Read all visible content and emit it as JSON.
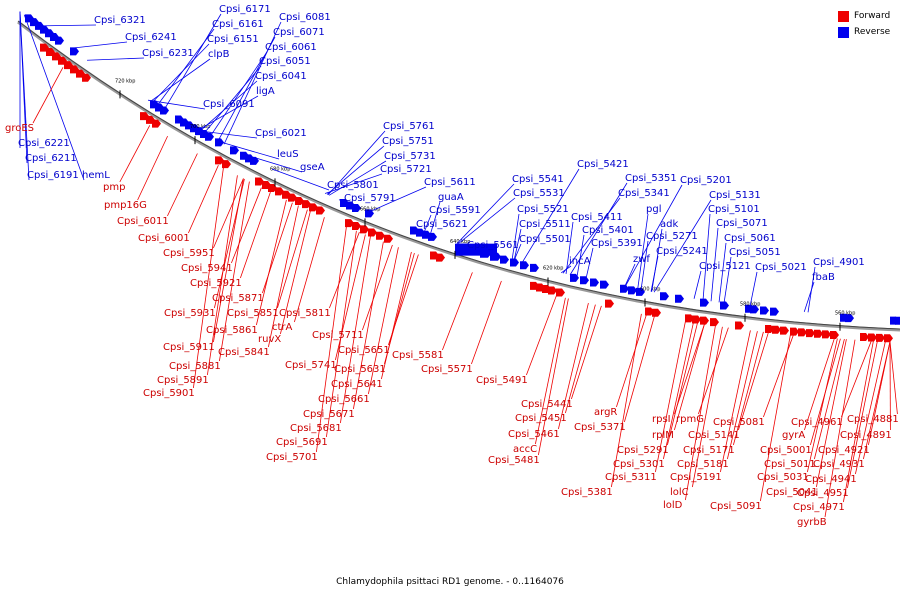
{
  "legend": [
    {
      "label": "Forward",
      "color": "#ee0000"
    },
    {
      "label": "Reverse",
      "color": "#0000ee"
    }
  ],
  "caption": "Chlamydophila psittaci RD1 genome. - 0..1164076",
  "ticks": [
    "720 kbp",
    "700 kbp",
    "680 kbp",
    "660 kbp",
    "640 kbp",
    "620 kbp",
    "600 kbp",
    "580 kbp",
    "560 kbp"
  ],
  "labels": [
    {
      "text": "Cpsi_6321",
      "strand": "reverse"
    },
    {
      "text": "Cpsi_6241",
      "strand": "reverse"
    },
    {
      "text": "Cpsi_6231",
      "strand": "reverse"
    },
    {
      "text": "Cpsi_6171",
      "strand": "reverse"
    },
    {
      "text": "Cpsi_6161",
      "strand": "reverse"
    },
    {
      "text": "Cpsi_6151",
      "strand": "reverse"
    },
    {
      "text": "clpB",
      "strand": "reverse"
    },
    {
      "text": "Cpsi_6081",
      "strand": "reverse"
    },
    {
      "text": "Cpsi_6071",
      "strand": "reverse"
    },
    {
      "text": "Cpsi_6061",
      "strand": "reverse"
    },
    {
      "text": "Cpsi_6051",
      "strand": "reverse"
    },
    {
      "text": "Cpsi_6041",
      "strand": "reverse"
    },
    {
      "text": "ligA",
      "strand": "reverse"
    },
    {
      "text": "Cpsi_6091",
      "strand": "reverse"
    },
    {
      "text": "Cpsi_6021",
      "strand": "reverse"
    },
    {
      "text": "leuS",
      "strand": "reverse"
    },
    {
      "text": "gseA",
      "strand": "reverse"
    },
    {
      "text": "Cpsi_6221",
      "strand": "reverse"
    },
    {
      "text": "Cpsi_6211",
      "strand": "reverse"
    },
    {
      "text": "Cpsi_6191",
      "strand": "reverse"
    },
    {
      "text": "hemL",
      "strand": "reverse"
    },
    {
      "text": "Cpsi_5761",
      "strand": "reverse"
    },
    {
      "text": "Cpsi_5751",
      "strand": "reverse"
    },
    {
      "text": "Cpsi_5731",
      "strand": "reverse"
    },
    {
      "text": "Cpsi_5721",
      "strand": "reverse"
    },
    {
      "text": "Cpsi_5801",
      "strand": "reverse"
    },
    {
      "text": "Cpsi_5791",
      "strand": "reverse"
    },
    {
      "text": "Cpsi_5611",
      "strand": "reverse"
    },
    {
      "text": "guaA",
      "strand": "reverse"
    },
    {
      "text": "Cpsi_5591",
      "strand": "reverse"
    },
    {
      "text": "Cpsi_5621",
      "strand": "reverse"
    },
    {
      "text": "Cpsi_5561",
      "strand": "reverse"
    },
    {
      "text": "Cpsi_5541",
      "strand": "reverse"
    },
    {
      "text": "Cpsi_5531",
      "strand": "reverse"
    },
    {
      "text": "Cpsi_5521",
      "strand": "reverse"
    },
    {
      "text": "Cpsi_5511",
      "strand": "reverse"
    },
    {
      "text": "Cpsi_5501",
      "strand": "reverse"
    },
    {
      "text": "Cpsi_5421",
      "strand": "reverse"
    },
    {
      "text": "Cpsi_5411",
      "strand": "reverse"
    },
    {
      "text": "Cpsi_5401",
      "strand": "reverse"
    },
    {
      "text": "incA",
      "strand": "reverse"
    },
    {
      "text": "Cpsi_5391",
      "strand": "reverse"
    },
    {
      "text": "Cpsi_5351",
      "strand": "reverse"
    },
    {
      "text": "Cpsi_5341",
      "strand": "reverse"
    },
    {
      "text": "pgl",
      "strand": "reverse"
    },
    {
      "text": "Cpsi_5271",
      "strand": "reverse"
    },
    {
      "text": "zwf",
      "strand": "reverse"
    },
    {
      "text": "adk",
      "strand": "reverse"
    },
    {
      "text": "Cpsi_5241",
      "strand": "reverse"
    },
    {
      "text": "Cpsi_5201",
      "strand": "reverse"
    },
    {
      "text": "Cpsi_5131",
      "strand": "reverse"
    },
    {
      "text": "Cpsi_5101",
      "strand": "reverse"
    },
    {
      "text": "Cpsi_5071",
      "strand": "reverse"
    },
    {
      "text": "Cpsi_5061",
      "strand": "reverse"
    },
    {
      "text": "Cpsi_5051",
      "strand": "reverse"
    },
    {
      "text": "Cpsi_5121",
      "strand": "reverse"
    },
    {
      "text": "Cpsi_5021",
      "strand": "reverse"
    },
    {
      "text": "Cpsi_4901",
      "strand": "reverse"
    },
    {
      "text": "fbaB",
      "strand": "reverse"
    },
    {
      "text": "groES",
      "strand": "forward"
    },
    {
      "text": "pmp",
      "strand": "forward"
    },
    {
      "text": "pmp16G",
      "strand": "forward"
    },
    {
      "text": "Cpsi_6011",
      "strand": "forward"
    },
    {
      "text": "Cpsi_6001",
      "strand": "forward"
    },
    {
      "text": "Cpsi_5951",
      "strand": "forward"
    },
    {
      "text": "Cpsi_5941",
      "strand": "forward"
    },
    {
      "text": "Cpsi_5921",
      "strand": "forward"
    },
    {
      "text": "Cpsi_5871",
      "strand": "forward"
    },
    {
      "text": "Cpsi_5931",
      "strand": "forward"
    },
    {
      "text": "Cpsi_5851",
      "strand": "forward"
    },
    {
      "text": "Cpsi_5811",
      "strand": "forward"
    },
    {
      "text": "Cpsi_5861",
      "strand": "forward"
    },
    {
      "text": "ctrA",
      "strand": "forward"
    },
    {
      "text": "ruvX",
      "strand": "forward"
    },
    {
      "text": "Cpsi_5911",
      "strand": "forward"
    },
    {
      "text": "Cpsi_5841",
      "strand": "forward"
    },
    {
      "text": "Cpsi_5881",
      "strand": "forward"
    },
    {
      "text": "Cpsi_5891",
      "strand": "forward"
    },
    {
      "text": "Cpsi_5901",
      "strand": "forward"
    },
    {
      "text": "Cpsi_5711",
      "strand": "forward"
    },
    {
      "text": "Cpsi_5651",
      "strand": "forward"
    },
    {
      "text": "Cpsi_5741",
      "strand": "forward"
    },
    {
      "text": "Cpsi_5631",
      "strand": "forward"
    },
    {
      "text": "Cpsi_5641",
      "strand": "forward"
    },
    {
      "text": "Cpsi_5661",
      "strand": "forward"
    },
    {
      "text": "Cpsi_5671",
      "strand": "forward"
    },
    {
      "text": "Cpsi_5681",
      "strand": "forward"
    },
    {
      "text": "Cpsi_5691",
      "strand": "forward"
    },
    {
      "text": "Cpsi_5701",
      "strand": "forward"
    },
    {
      "text": "Cpsi_5581",
      "strand": "forward"
    },
    {
      "text": "Cpsi_5571",
      "strand": "forward"
    },
    {
      "text": "Cpsi_5491",
      "strand": "forward"
    },
    {
      "text": "Cpsi_5441",
      "strand": "forward"
    },
    {
      "text": "Cpsi_5451",
      "strand": "forward"
    },
    {
      "text": "Cpsi_5461",
      "strand": "forward"
    },
    {
      "text": "accC",
      "strand": "forward"
    },
    {
      "text": "Cpsi_5481",
      "strand": "forward"
    },
    {
      "text": "argR",
      "strand": "forward"
    },
    {
      "text": "Cpsi_5371",
      "strand": "forward"
    },
    {
      "text": "Cpsi_5381",
      "strand": "forward"
    },
    {
      "text": "rpsI",
      "strand": "forward"
    },
    {
      "text": "rplM",
      "strand": "forward"
    },
    {
      "text": "Cpsi_5291",
      "strand": "forward"
    },
    {
      "text": "Cpsi_5301",
      "strand": "forward"
    },
    {
      "text": "Cpsi_5311",
      "strand": "forward"
    },
    {
      "text": "rpmG",
      "strand": "forward"
    },
    {
      "text": "Cpsi_5141",
      "strand": "forward"
    },
    {
      "text": "Cpsi_5171",
      "strand": "forward"
    },
    {
      "text": "Cpsi_5181",
      "strand": "forward"
    },
    {
      "text": "Cpsi_5191",
      "strand": "forward"
    },
    {
      "text": "lolC",
      "strand": "forward"
    },
    {
      "text": "lolD",
      "strand": "forward"
    },
    {
      "text": "Cpsi_5081",
      "strand": "forward"
    },
    {
      "text": "Cpsi_5091",
      "strand": "forward"
    },
    {
      "text": "gyrA",
      "strand": "forward"
    },
    {
      "text": "Cpsi_5001",
      "strand": "forward"
    },
    {
      "text": "Cpsi_5011",
      "strand": "forward"
    },
    {
      "text": "Cpsi_5031",
      "strand": "forward"
    },
    {
      "text": "Cpsi_5041",
      "strand": "forward"
    },
    {
      "text": "Cpsi_4961",
      "strand": "forward"
    },
    {
      "text": "Cpsi_4921",
      "strand": "forward"
    },
    {
      "text": "Cpsi_4931",
      "strand": "forward"
    },
    {
      "text": "Cpsi_4941",
      "strand": "forward"
    },
    {
      "text": "Cpsi_4951",
      "strand": "forward"
    },
    {
      "text": "Cpsi_4971",
      "strand": "forward"
    },
    {
      "text": "gyrbB",
      "strand": "forward"
    },
    {
      "text": "Cpsi_4881",
      "strand": "forward"
    },
    {
      "text": "Cpsi_4891",
      "strand": "forward"
    }
  ]
}
